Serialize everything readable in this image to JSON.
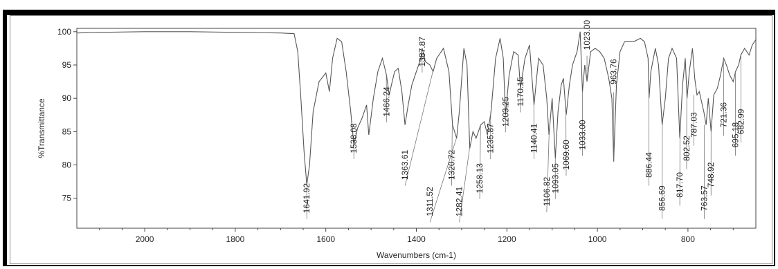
{
  "chart_data": {
    "type": "line",
    "title": "",
    "xlabel": "Wavenumbers (cm-1)",
    "ylabel": "%Transmittance",
    "xlim": [
      2150,
      650
    ],
    "ylim": [
      70.5,
      100.5
    ],
    "x_reversed": true,
    "x_ticks": [
      2000,
      1800,
      1600,
      1400,
      1200,
      1000,
      800
    ],
    "y_ticks": [
      75,
      80,
      85,
      90,
      95,
      100
    ],
    "grid": false,
    "colors": {
      "line": "#555555",
      "axis": "#444444"
    },
    "series": [
      {
        "points": [
          [
            2150,
            99.8
          ],
          [
            2100,
            99.9
          ],
          [
            2000,
            100.0
          ],
          [
            1900,
            100.0
          ],
          [
            1800,
            99.9
          ],
          [
            1700,
            99.8
          ],
          [
            1670,
            99.7
          ],
          [
            1662,
            97.0
          ],
          [
            1655,
            90.0
          ],
          [
            1648,
            82.0
          ],
          [
            1642,
            77.0
          ],
          [
            1636,
            80.0
          ],
          [
            1628,
            88.0
          ],
          [
            1615,
            92.5
          ],
          [
            1600,
            93.8
          ],
          [
            1592,
            91.0
          ],
          [
            1585,
            96.0
          ],
          [
            1575,
            99.0
          ],
          [
            1565,
            98.5
          ],
          [
            1555,
            94.0
          ],
          [
            1545,
            88.0
          ],
          [
            1538,
            83.0
          ],
          [
            1530,
            85.5
          ],
          [
            1520,
            87.0
          ],
          [
            1510,
            89.0
          ],
          [
            1505,
            84.5
          ],
          [
            1495,
            90.0
          ],
          [
            1485,
            94.0
          ],
          [
            1475,
            96.0
          ],
          [
            1466,
            93.5
          ],
          [
            1460,
            90.5
          ],
          [
            1455,
            92.0
          ],
          [
            1448,
            94.0
          ],
          [
            1440,
            94.5
          ],
          [
            1432,
            91.0
          ],
          [
            1425,
            86.0
          ],
          [
            1418,
            89.0
          ],
          [
            1410,
            92.0
          ],
          [
            1400,
            94.0
          ],
          [
            1390,
            96.0
          ],
          [
            1387,
            97.5
          ],
          [
            1380,
            95.5
          ],
          [
            1370,
            95.0
          ],
          [
            1363,
            94.0
          ],
          [
            1355,
            96.0
          ],
          [
            1340,
            97.5
          ],
          [
            1328,
            94.0
          ],
          [
            1320,
            86.0
          ],
          [
            1311,
            84.0
          ],
          [
            1305,
            88.0
          ],
          [
            1295,
            97.5
          ],
          [
            1288,
            95.0
          ],
          [
            1282,
            82.5
          ],
          [
            1275,
            85.0
          ],
          [
            1268,
            84.0
          ],
          [
            1258,
            86.0
          ],
          [
            1250,
            86.5
          ],
          [
            1243,
            84.5
          ],
          [
            1235,
            88.0
          ],
          [
            1225,
            96.0
          ],
          [
            1215,
            99.0
          ],
          [
            1208,
            96.0
          ],
          [
            1203,
            87.5
          ],
          [
            1195,
            93.5
          ],
          [
            1185,
            97.0
          ],
          [
            1175,
            96.5
          ],
          [
            1170,
            91.5
          ],
          [
            1160,
            96.0
          ],
          [
            1150,
            98.0
          ],
          [
            1140,
            89.0
          ],
          [
            1130,
            96.0
          ],
          [
            1120,
            95.0
          ],
          [
            1112,
            90.0
          ],
          [
            1107,
            84.5
          ],
          [
            1100,
            90.0
          ],
          [
            1093,
            81.0
          ],
          [
            1087,
            88.0
          ],
          [
            1080,
            92.0
          ],
          [
            1075,
            93.0
          ],
          [
            1069,
            87.5
          ],
          [
            1062,
            92.0
          ],
          [
            1055,
            95.0
          ],
          [
            1045,
            97.0
          ],
          [
            1038,
            100.0
          ],
          [
            1033,
            91.0
          ],
          [
            1028,
            95.0
          ],
          [
            1023,
            92.5
          ],
          [
            1015,
            97.0
          ],
          [
            1005,
            97.5
          ],
          [
            995,
            97.0
          ],
          [
            985,
            96.0
          ],
          [
            975,
            93.0
          ],
          [
            968,
            90.0
          ],
          [
            964,
            80.5
          ],
          [
            958,
            92.0
          ],
          [
            950,
            97.0
          ],
          [
            940,
            98.5
          ],
          [
            920,
            98.5
          ],
          [
            905,
            99.0
          ],
          [
            896,
            98.5
          ],
          [
            888,
            96.0
          ],
          [
            886,
            90.0
          ],
          [
            882,
            94.0
          ],
          [
            872,
            97.5
          ],
          [
            865,
            95.0
          ],
          [
            857,
            86.0
          ],
          [
            850,
            90.0
          ],
          [
            843,
            96.0
          ],
          [
            835,
            97.5
          ],
          [
            825,
            96.0
          ],
          [
            818,
            84.0
          ],
          [
            812,
            92.0
          ],
          [
            806,
            96.0
          ],
          [
            802,
            90.0
          ],
          [
            797,
            94.0
          ],
          [
            790,
            97.5
          ],
          [
            785,
            93.0
          ],
          [
            780,
            90.5
          ],
          [
            775,
            91.0
          ],
          [
            770,
            89.5
          ],
          [
            765,
            88.0
          ],
          [
            760,
            86.0
          ],
          [
            755,
            90.0
          ],
          [
            749,
            85.0
          ],
          [
            743,
            90.5
          ],
          [
            735,
            91.5
          ],
          [
            728,
            93.5
          ],
          [
            721,
            96.0
          ],
          [
            715,
            95.0
          ],
          [
            708,
            93.5
          ],
          [
            700,
            92.5
          ],
          [
            695,
            94.0
          ],
          [
            688,
            95.0
          ],
          [
            683,
            96.5
          ],
          [
            675,
            97.5
          ],
          [
            665,
            96.5
          ],
          [
            658,
            98.0
          ],
          [
            650,
            98.8
          ]
        ]
      }
    ],
    "peak_labels": [
      {
        "text": "1641.92",
        "x": 1641.92,
        "y": 77.0,
        "label_y": 75.0,
        "label_x": 1642
      },
      {
        "text": "1538.08",
        "x": 1538.08,
        "y": 83.0,
        "label_y": 84.0,
        "label_x": 1538
      },
      {
        "text": "1466.24",
        "x": 1466.24,
        "y": 93.5,
        "label_y": 89.5,
        "label_x": 1466
      },
      {
        "text": "1387.87",
        "x": 1387.87,
        "y": 97.5,
        "label_y": 97.0,
        "label_x": 1387
      },
      {
        "text": "1363.61",
        "x": 1363.61,
        "y": 94.0,
        "label_y": 80.0,
        "label_x": 1425
      },
      {
        "text": "1311.52",
        "x": 1311.52,
        "y": 84.0,
        "label_y": 74.5,
        "label_x": 1370
      },
      {
        "text": "1320.72",
        "x": 1320.72,
        "y": 86.0,
        "label_y": 80.0,
        "label_x": 1322
      },
      {
        "text": "1282.41",
        "x": 1282.41,
        "y": 82.5,
        "label_y": 74.5,
        "label_x": 1305
      },
      {
        "text": "1258.13",
        "x": 1258.13,
        "y": 86.0,
        "label_y": 78.0,
        "label_x": 1260
      },
      {
        "text": "1235.87",
        "x": 1235.87,
        "y": 88.0,
        "label_y": 84.0,
        "label_x": 1236
      },
      {
        "text": "1203.25",
        "x": 1203.25,
        "y": 87.5,
        "label_y": 88.0,
        "label_x": 1203
      },
      {
        "text": "1170.15",
        "x": 1170.15,
        "y": 91.5,
        "label_y": 91.0,
        "label_x": 1170
      },
      {
        "text": "1140.41",
        "x": 1140.41,
        "y": 89.0,
        "label_y": 84.0,
        "label_x": 1140
      },
      {
        "text": "1106.82",
        "x": 1106.82,
        "y": 84.5,
        "label_y": 76.0,
        "label_x": 1112
      },
      {
        "text": "1093.05",
        "x": 1093.05,
        "y": 81.0,
        "label_y": 78.0,
        "label_x": 1093
      },
      {
        "text": "1069.60",
        "x": 1069.6,
        "y": 87.5,
        "label_y": 81.5,
        "label_x": 1069
      },
      {
        "text": "1033.00",
        "x": 1033.0,
        "y": 91.0,
        "label_y": 84.5,
        "label_x": 1033
      },
      {
        "text": "1023.00",
        "x": 1023.0,
        "y": 92.5,
        "label_y": 99.5,
        "label_x": 1023
      },
      {
        "text": "963.76",
        "x": 963.76,
        "y": 80.5,
        "label_y": 94.0,
        "label_x": 964
      },
      {
        "text": "886.44",
        "x": 886.44,
        "y": 90.0,
        "label_y": 80.0,
        "label_x": 886
      },
      {
        "text": "856.69",
        "x": 856.69,
        "y": 86.0,
        "label_y": 75.0,
        "label_x": 857
      },
      {
        "text": "817.70",
        "x": 817.7,
        "y": 84.0,
        "label_y": 77.0,
        "label_x": 818
      },
      {
        "text": "802.52",
        "x": 802.52,
        "y": 90.0,
        "label_y": 82.5,
        "label_x": 803
      },
      {
        "text": "787.03",
        "x": 787.03,
        "y": 90.5,
        "label_y": 86.0,
        "label_x": 787
      },
      {
        "text": "763.57",
        "x": 763.57,
        "y": 86.0,
        "label_y": 75.0,
        "label_x": 764
      },
      {
        "text": "748.92",
        "x": 748.92,
        "y": 85.0,
        "label_y": 78.5,
        "label_x": 749
      },
      {
        "text": "721.36",
        "x": 721.36,
        "y": 96.0,
        "label_y": 87.5,
        "label_x": 721
      },
      {
        "text": "695.18",
        "x": 695.18,
        "y": 94.0,
        "label_y": 84.5,
        "label_x": 695
      },
      {
        "text": "682.99",
        "x": 682.99,
        "y": 96.5,
        "label_y": 86.5,
        "label_x": 683
      }
    ]
  }
}
